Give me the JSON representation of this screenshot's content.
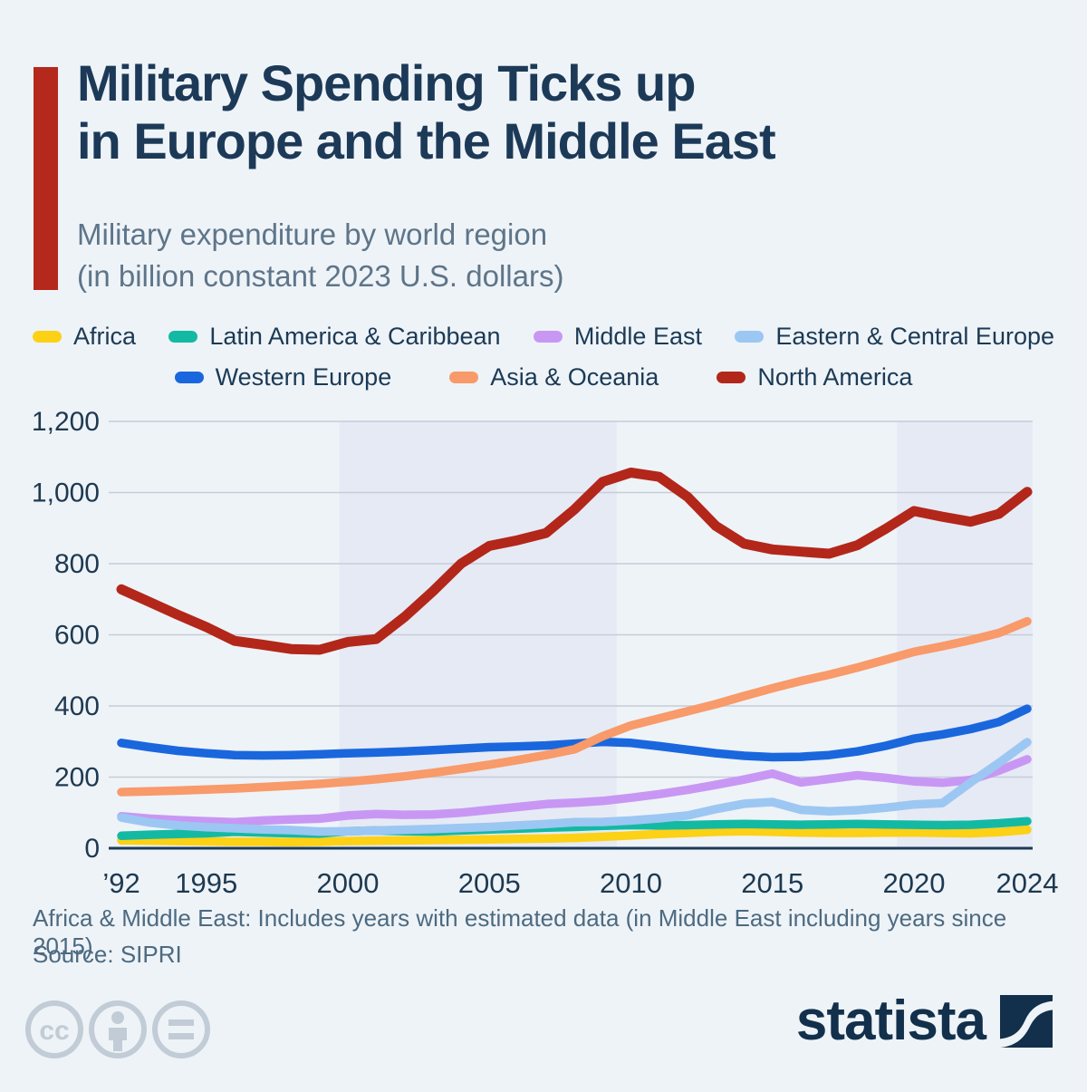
{
  "header": {
    "title_line1": "Military Spending Ticks up",
    "title_line2": "in Europe and the Middle East",
    "subtitle_line1": "Military expenditure by world region",
    "subtitle_line2": "(in billion constant 2023 U.S. dollars)"
  },
  "legend": {
    "rows": [
      [
        {
          "label": "Africa",
          "color": "#fcd116"
        },
        {
          "label": "Latin America & Caribbean",
          "color": "#14b9a3"
        },
        {
          "label": "Middle East",
          "color": "#c897f4"
        },
        {
          "label": "Eastern & Central Europe",
          "color": "#9cc7f2"
        }
      ],
      [
        {
          "label": "Western Europe",
          "color": "#1a67dd"
        },
        {
          "label": "Asia & Oceania",
          "color": "#f89a69"
        },
        {
          "label": "North America",
          "color": "#b2271a"
        }
      ]
    ]
  },
  "chart_data": {
    "type": "line",
    "title": "Military Spending Ticks up in Europe and the Middle East",
    "subtitle": "Military expenditure by world region (in billion constant 2023 U.S. dollars)",
    "xlabel": "",
    "ylabel": "billion constant 2023 U.S. dollars",
    "xlim": [
      1992,
      2025.2
    ],
    "ylim": [
      0,
      1200
    ],
    "grid": true,
    "legend_position": "top",
    "shaded_bands": [
      [
        1999.7,
        2009.5
      ],
      [
        2019.4,
        2025.2
      ]
    ],
    "y_ticks": [
      {
        "value": 0,
        "label": "0"
      },
      {
        "value": 200,
        "label": "200"
      },
      {
        "value": 400,
        "label": "400"
      },
      {
        "value": 600,
        "label": "600"
      },
      {
        "value": 800,
        "label": "800"
      },
      {
        "value": 1000,
        "label": "1,000"
      },
      {
        "value": 1200,
        "label": "1,200"
      }
    ],
    "x_ticks": [
      {
        "value": 1992,
        "label": "’92"
      },
      {
        "value": 1995,
        "label": "1995"
      },
      {
        "value": 2000,
        "label": "2000"
      },
      {
        "value": 2005,
        "label": "2005"
      },
      {
        "value": 2010,
        "label": "2010"
      },
      {
        "value": 2015,
        "label": "2015"
      },
      {
        "value": 2020,
        "label": "2020"
      },
      {
        "value": 2024,
        "label": "2024"
      }
    ],
    "x": [
      1992,
      1993,
      1994,
      1995,
      1996,
      1997,
      1998,
      1999,
      2000,
      2001,
      2002,
      2003,
      2004,
      2005,
      2006,
      2007,
      2008,
      2009,
      2010,
      2011,
      2012,
      2013,
      2014,
      2015,
      2016,
      2017,
      2018,
      2019,
      2020,
      2021,
      2022,
      2023,
      2024
    ],
    "series": [
      {
        "name": "Africa",
        "color": "#fcd116",
        "values": [
          22,
          21,
          20,
          19,
          18,
          18,
          17,
          18,
          20,
          21,
          22,
          23,
          24,
          25,
          26,
          27,
          29,
          32,
          36,
          40,
          43,
          46,
          48,
          46,
          44,
          43,
          43,
          44,
          44,
          43,
          42,
          45,
          52
        ]
      },
      {
        "name": "Latin America & Caribbean",
        "color": "#14b9a3",
        "values": [
          35,
          38,
          40,
          42,
          46,
          44,
          42,
          41,
          48,
          50,
          48,
          47,
          50,
          53,
          55,
          58,
          60,
          63,
          65,
          64,
          65,
          67,
          68,
          67,
          66,
          67,
          68,
          67,
          66,
          65,
          66,
          70,
          76
        ]
      },
      {
        "name": "Middle East",
        "color": "#c897f4",
        "values": [
          90,
          83,
          79,
          76,
          73,
          78,
          81,
          83,
          92,
          96,
          94,
          95,
          100,
          108,
          116,
          124,
          128,
          133,
          142,
          152,
          164,
          178,
          193,
          210,
          185,
          195,
          205,
          198,
          188,
          184,
          192,
          218,
          250
        ]
      },
      {
        "name": "Eastern & Central Europe",
        "color": "#9cc7f2",
        "values": [
          86,
          72,
          64,
          59,
          56,
          53,
          51,
          47,
          48,
          50,
          52,
          54,
          57,
          60,
          64,
          68,
          73,
          74,
          78,
          84,
          92,
          110,
          125,
          130,
          108,
          104,
          107,
          114,
          123,
          127,
          185,
          240,
          298
        ]
      },
      {
        "name": "Western Europe",
        "color": "#1a67dd",
        "values": [
          296,
          284,
          274,
          267,
          262,
          261,
          262,
          264,
          267,
          269,
          272,
          276,
          280,
          284,
          286,
          289,
          294,
          299,
          296,
          287,
          277,
          267,
          260,
          256,
          257,
          262,
          272,
          288,
          308,
          320,
          335,
          355,
          392
        ]
      },
      {
        "name": "Asia & Oceania",
        "color": "#f89a69",
        "values": [
          158,
          160,
          162,
          165,
          168,
          172,
          176,
          181,
          187,
          194,
          202,
          212,
          223,
          235,
          248,
          262,
          278,
          315,
          345,
          365,
          385,
          405,
          428,
          450,
          470,
          488,
          508,
          530,
          552,
          568,
          585,
          605,
          638
        ]
      },
      {
        "name": "North America",
        "color": "#b2271a",
        "values": [
          728,
          692,
          656,
          622,
          583,
          572,
          560,
          558,
          580,
          588,
          650,
          722,
          800,
          850,
          866,
          886,
          952,
          1030,
          1056,
          1044,
          988,
          906,
          856,
          840,
          834,
          828,
          852,
          898,
          948,
          932,
          918,
          940,
          1002
        ]
      }
    ]
  },
  "footer": {
    "note": "Africa & Middle East: Includes years with estimated data (in Middle East including years since 2015)",
    "source": "Source: SIPRI"
  },
  "branding": {
    "logo_text": "statista",
    "cc_icons": [
      "cc-icon",
      "attribution-person-icon",
      "equals-icon"
    ]
  },
  "colors": {
    "background": "#eef3f8",
    "accent_bar": "#b5281c",
    "title_text": "#1c3a57",
    "subtitle_text": "#5e7589",
    "axis_text": "#1e3950",
    "gridline": "#c6cdd8",
    "band": "#e6eaf5",
    "footer_text": "#4d6a80",
    "cc_gray": "#c2ccd6",
    "logo_navy": "#12304b"
  }
}
